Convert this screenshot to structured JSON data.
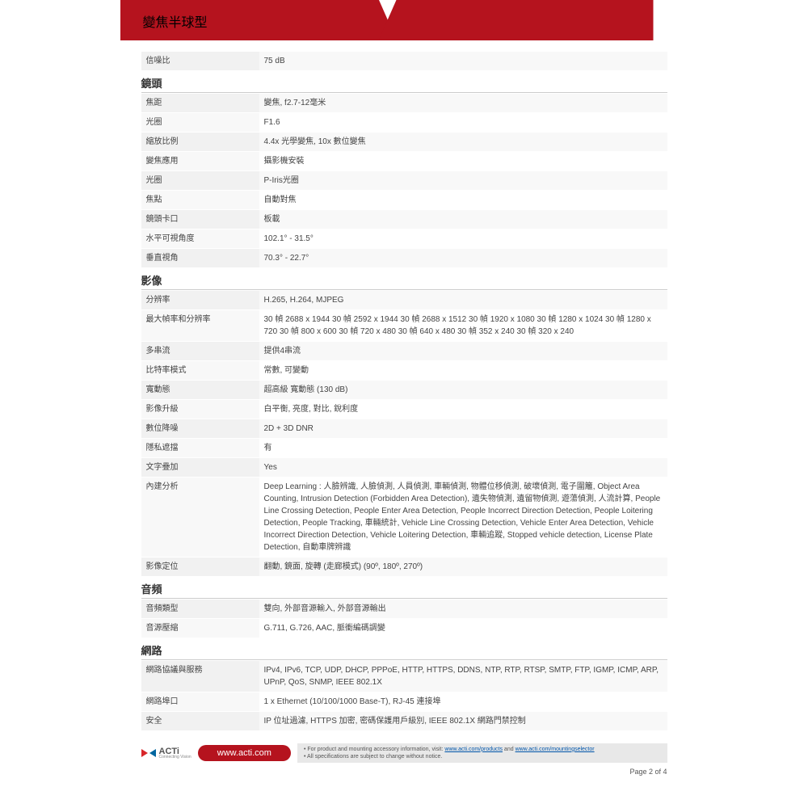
{
  "header": {
    "title": "變焦半球型"
  },
  "sections": [
    {
      "head": null,
      "rows": [
        {
          "label": "信噪比",
          "value": "75 dB"
        }
      ]
    },
    {
      "head": "鏡頭",
      "rows": [
        {
          "label": "焦距",
          "value": "變焦, f2.7-12毫米"
        },
        {
          "label": "光圈",
          "value": "F1.6"
        },
        {
          "label": "縮放比例",
          "value": "4.4x 光學變焦, 10x 數位變焦"
        },
        {
          "label": "變焦應用",
          "value": "攝影機安裝"
        },
        {
          "label": "光圈",
          "value": "P-Iris光圈"
        },
        {
          "label": "焦點",
          "value": "自動對焦"
        },
        {
          "label": "鏡頭卡口",
          "value": "板載"
        },
        {
          "label": "水平可視角度",
          "value": "102.1° - 31.5°"
        },
        {
          "label": "垂直視角",
          "value": "70.3° - 22.7°"
        }
      ]
    },
    {
      "head": "影像",
      "rows": [
        {
          "label": "分辨率",
          "value": "H.265, H.264, MJPEG"
        },
        {
          "label": "最大幀率和分辨率",
          "value": "30 幀 2688 x 1944 30 幀 2592 x 1944 30 幀 2688 x 1512 30 幀 1920 x 1080 30 幀 1280 x 1024 30 幀 1280 x 720 30 幀 800 x 600 30 幀 720 x 480 30 幀 640 x 480 30 幀 352 x 240 30 幀 320 x 240"
        },
        {
          "label": "多串流",
          "value": "提供4串流"
        },
        {
          "label": "比特率模式",
          "value": "常數, 可變動"
        },
        {
          "label": "寬動態",
          "value": "超高級 寬動態 (130 dB)"
        },
        {
          "label": "影像升級",
          "value": "白平衡, 亮度, 對比, 銳利度"
        },
        {
          "label": "數位降噪",
          "value": "2D + 3D DNR"
        },
        {
          "label": "隱私遮擋",
          "value": "有"
        },
        {
          "label": "文字疊加",
          "value": "Yes"
        },
        {
          "label": "內建分析",
          "value": "Deep Learning : 人臉辨識, 人臉偵測, 人員偵測, 車輛偵測, 物體位移偵測, 破壞偵測, 電子圍籬, Object Area Counting, Intrusion Detection (Forbidden Area Detection), 遺失物偵測, 遺留物偵測, 遊蕩偵測, 人流計算, People Line Crossing Detection, People Enter Area Detection, People Incorrect Direction Detection, People Loitering Detection, People Tracking, 車輛統計, Vehicle Line Crossing Detection, Vehicle Enter Area Detection, Vehicle Incorrect Direction Detection, Vehicle Loitering Detection, 車輛追蹤, Stopped vehicle detection, License Plate Detection, 自動車牌辨識"
        },
        {
          "label": "影像定位",
          "value": "翻動, 鏡面, 旋轉 (走廊模式) (90º, 180º, 270º)"
        }
      ]
    },
    {
      "head": "音頻",
      "rows": [
        {
          "label": "音頻類型",
          "value": "雙向, 外部音源輸入, 外部音源輸出"
        },
        {
          "label": "音源壓縮",
          "value": "G.711, G.726, AAC, 脈衝編碼調變"
        }
      ]
    },
    {
      "head": "網路",
      "rows": [
        {
          "label": "網路協議與服務",
          "value": "IPv4, IPv6, TCP, UDP, DHCP, PPPoE, HTTP, HTTPS, DDNS, NTP, RTP, RTSP, SMTP, FTP, IGMP, ICMP, ARP, UPnP, QoS, SNMP, IEEE 802.1X"
        },
        {
          "label": "網路埠口",
          "value": "1 x Ethernet (10/100/1000 Base-T), RJ-45 連接埠"
        },
        {
          "label": "安全",
          "value": "IP 位址過濾, HTTPS 加密, 密碼保護用戶級別, IEEE 802.1X 網路門禁控制"
        }
      ]
    }
  ],
  "footer": {
    "logo_text": "ACTi",
    "logo_sub": "Connecting Vision",
    "url": "www.acti.com",
    "note_prefix": "• For product and mounting accessory information, visit: ",
    "link1": "www.acti.com/products",
    "and": " and ",
    "link2": "www.acti.com/mountingselector",
    "note2": "• All specifications are subject to change without notice.",
    "page": "Page 2 of 4"
  },
  "colors": {
    "brand": "#b5131e",
    "row_bg1": "#f1f1f1",
    "row_bg2": "#f8f8f8"
  }
}
